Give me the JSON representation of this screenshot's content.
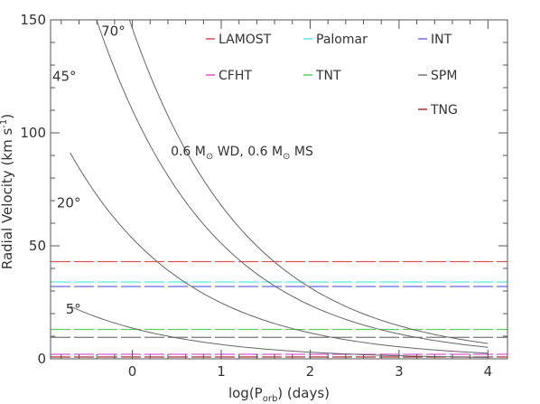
{
  "chart_data": {
    "type": "line",
    "xlabel": "log(P",
    "xlabel_sub": "orb",
    "xlabel_end": ") (days)",
    "ylabel": "Radial Velocity (km s",
    "ylabel_sup": "-1",
    "ylabel_end": ")",
    "xlim": [
      -0.92,
      4.22
    ],
    "ylim": [
      0,
      150
    ],
    "x_ticks": [
      0,
      1,
      2,
      3,
      4
    ],
    "y_ticks": [
      0,
      50,
      100,
      150
    ],
    "grid": false,
    "legend_placement": "top-right",
    "annotation": {
      "text_a": "0.6 M",
      "sub_a": "⊙",
      "text_b": " WD, 0.6 M",
      "sub_b": "⊙",
      "text_c": " MS",
      "x": 1.6,
      "y": 90
    },
    "curves": [
      {
        "label": "70°",
        "k0": 146.3,
        "x_start": -0.37,
        "x_end": 4.0,
        "label_x": -0.35,
        "label_y": 143
      },
      {
        "label": "45°",
        "k0": 110.1,
        "x_start": -0.7,
        "x_end": 4.0,
        "label_x": -0.9,
        "label_y": 123
      },
      {
        "label": "20°",
        "k0": 53.3,
        "x_start": -0.7,
        "x_end": 4.0,
        "label_x": -0.85,
        "label_y": 67
      },
      {
        "label": "5°",
        "k0": 13.6,
        "x_start": -0.7,
        "x_end": 4.0,
        "label_x": -0.75,
        "label_y": 20
      }
    ],
    "series": [
      {
        "name": "LAMOST",
        "value": 43,
        "color": "#d9534f"
      },
      {
        "name": "Palomar",
        "value": 34,
        "color": "#5ce6e6"
      },
      {
        "name": "INT",
        "value": 32,
        "color": "#6a6ae0"
      },
      {
        "name": "CFHT",
        "value": 2,
        "color": "#d65ad6"
      },
      {
        "name": "TNT",
        "value": 13,
        "color": "#5ccf5c"
      },
      {
        "name": "SPM",
        "value": 9.5,
        "color": "#777777"
      },
      {
        "name": "TNG",
        "value": 0.8,
        "color": "#a83232"
      }
    ]
  }
}
